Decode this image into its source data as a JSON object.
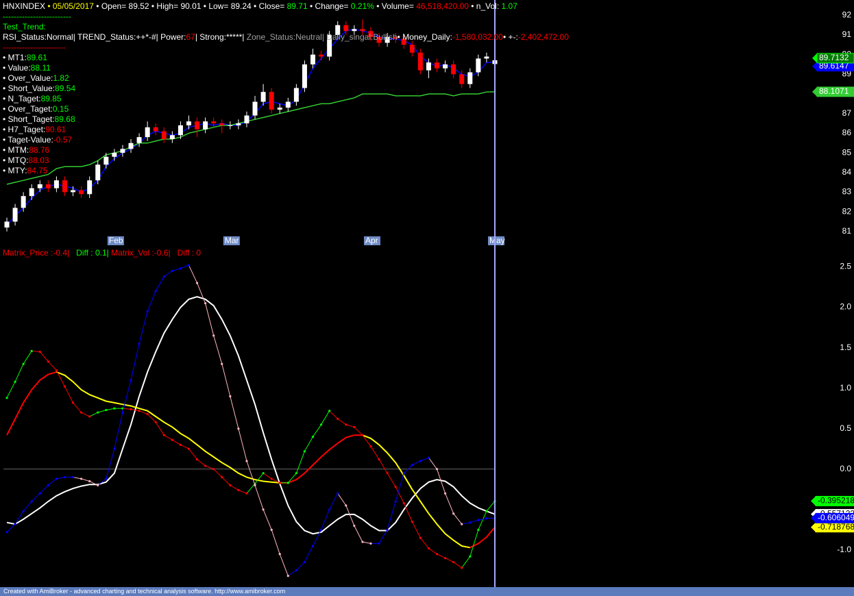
{
  "header": {
    "line1": [
      {
        "text": "HNXINDEX",
        "color": "#ffffff"
      },
      {
        "text": " • 05/05/2017",
        "color": "#ffff00"
      },
      {
        "text": " • Open= 89.52 • High= 90.01 • Low= 89.24 • Close= ",
        "color": "#ffffff"
      },
      {
        "text": "89.71",
        "color": "#00ff00"
      },
      {
        "text": " • Change= ",
        "color": "#ffffff"
      },
      {
        "text": "0.21%",
        "color": "#00ff00"
      },
      {
        "text": " • Volume= ",
        "color": "#ffffff"
      },
      {
        "text": "46,518,420.00",
        "color": "#ff0000"
      },
      {
        "text": " • n_Vol: ",
        "color": "#ffffff"
      },
      {
        "text": "1.07",
        "color": "#00ff00"
      }
    ],
    "separator_1": [
      {
        "text": "-------------------------",
        "color": "#00ff00"
      }
    ],
    "trend_title": [
      {
        "text": "Test_Trend:",
        "color": "#00ff00"
      }
    ],
    "line2": [
      {
        "text": "RSI_Status:Normal| TREND_Status:++*-#| Power:",
        "color": "#ffffff"
      },
      {
        "text": "67",
        "color": "#ff0000"
      },
      {
        "text": "| Strong:*****| ",
        "color": "#ffffff"
      },
      {
        "text": "Zone_Status:Neutral| Daily_singal:Bullish",
        "color": "#a0a0a0"
      },
      {
        "text": "• Money_Daily:",
        "color": "#ffffff"
      },
      {
        "text": "-1,580,032.00",
        "color": "#ff0000"
      },
      {
        "text": "• +-:",
        "color": "#ffffff"
      },
      {
        "text": "-2,402,472.00",
        "color": "#ff0000"
      }
    ],
    "separator_2": [
      {
        "text": "-----------------------",
        "color": "#ff0000"
      }
    ]
  },
  "indicators": [
    {
      "label": "• MT1:",
      "value": "89.61",
      "color": "#00ff00"
    },
    {
      "label": "• Value:",
      "value": "88.11",
      "color": "#00ff00"
    },
    {
      "label": "• Over_Value:",
      "value": "1.82",
      "color": "#00ff00"
    },
    {
      "label": "• Short_Value:",
      "value": "89.54",
      "color": "#00ff00"
    },
    {
      "label": "• N_Taget:",
      "value": "89.85",
      "color": "#00ff00"
    },
    {
      "label": "• Over_Taget:",
      "value": "0.15",
      "color": "#00ff00"
    },
    {
      "label": "• Short_Taget:",
      "value": "89.68",
      "color": "#00ff00"
    },
    {
      "label": "• H7_Taget:",
      "value": "90.61",
      "color": "#ff0000"
    },
    {
      "label": "• Taget-Value:",
      "value": "-0.57",
      "color": "#ff0000"
    },
    {
      "label": "• MTM:",
      "value": "88.76",
      "color": "#ff0000"
    },
    {
      "label": "• MTQ:",
      "value": "88.03",
      "color": "#ff0000"
    },
    {
      "label": "• MTY:",
      "value": "84.75",
      "color": "#ff0000"
    }
  ],
  "lower_header": [
    {
      "text": "Matrix_Price :-0.4|",
      "color": "#ff0000"
    },
    {
      "text": "   Diff : 0.1|",
      "color": "#00ff00"
    },
    {
      "text": " Matrix_Vol :-0.6|",
      "color": "#ff0000"
    },
    {
      "text": "   Diff : 0",
      "color": "#ff0000"
    }
  ],
  "footer": "Created with AmiBroker - advanced charting and technical analysis software. http://www.amibroker.com",
  "chart_data": [
    {
      "type": "candlestick",
      "categories": [
        null,
        null,
        null,
        null,
        null,
        null,
        null,
        null,
        null,
        null,
        null,
        null,
        null,
        "Feb",
        null,
        null,
        null,
        null,
        null,
        null,
        null,
        null,
        null,
        null,
        null,
        null,
        null,
        "Mar",
        null,
        null,
        null,
        null,
        null,
        null,
        null,
        null,
        null,
        null,
        null,
        null,
        null,
        null,
        null,
        null,
        "Apr",
        null,
        null,
        null,
        null,
        null,
        null,
        null,
        null,
        null,
        null,
        null,
        null,
        null,
        null,
        "May"
      ],
      "open": [
        81.2,
        81.5,
        82.2,
        82.8,
        83.2,
        83.4,
        83.2,
        83.6,
        83.0,
        83.1,
        82.9,
        83.6,
        84.4,
        84.8,
        85.0,
        85.2,
        85.5,
        85.8,
        86.3,
        86.1,
        85.7,
        85.9,
        86.4,
        86.6,
        86.2,
        86.6,
        86.5,
        86.4,
        86.4,
        86.5,
        86.9,
        87.6,
        88.1,
        87.2,
        87.3,
        87.6,
        88.3,
        89.5,
        90.0,
        89.9,
        91.0,
        91.5,
        91.2,
        91.3,
        91.2,
        90.9,
        90.6,
        90.9,
        90.8,
        90.5,
        90.1,
        89.2,
        89.6,
        89.3,
        89.5,
        89.0,
        88.5,
        89.1,
        89.8,
        89.52
      ],
      "high": [
        81.7,
        82.4,
        83.0,
        83.4,
        83.6,
        83.6,
        83.8,
        83.8,
        83.3,
        83.3,
        83.8,
        84.6,
        85.0,
        85.2,
        85.4,
        85.7,
        86.0,
        86.6,
        86.5,
        86.3,
        86.1,
        86.6,
        86.9,
        86.8,
        86.8,
        86.8,
        86.7,
        86.6,
        86.7,
        87.1,
        87.9,
        88.5,
        88.3,
        87.5,
        87.8,
        88.5,
        89.7,
        90.3,
        90.2,
        91.2,
        91.7,
        91.7,
        91.5,
        91.8,
        91.4,
        91.1,
        91.1,
        91.1,
        91.0,
        90.7,
        90.3,
        89.8,
        89.8,
        89.7,
        89.7,
        89.2,
        89.3,
        90.0,
        90.1,
        90.01
      ],
      "low": [
        81.0,
        81.3,
        82.0,
        82.6,
        83.0,
        83.0,
        83.0,
        82.8,
        82.8,
        82.7,
        82.7,
        83.4,
        84.2,
        84.6,
        84.8,
        85.0,
        85.3,
        85.6,
        85.9,
        85.5,
        85.5,
        85.7,
        86.2,
        85.8,
        86.0,
        86.3,
        86.0,
        86.2,
        86.2,
        86.3,
        86.7,
        87.4,
        87.0,
        87.0,
        87.1,
        87.4,
        88.1,
        89.3,
        89.7,
        89.7,
        90.8,
        91.0,
        91.0,
        91.0,
        90.7,
        90.4,
        90.4,
        90.6,
        90.3,
        89.9,
        89.0,
        88.8,
        89.1,
        89.1,
        88.8,
        88.3,
        88.3,
        88.9,
        89.6,
        89.24
      ],
      "close": [
        81.5,
        82.2,
        82.8,
        83.2,
        83.4,
        83.2,
        83.6,
        83.0,
        83.1,
        82.9,
        83.6,
        84.4,
        84.8,
        85.0,
        85.2,
        85.5,
        85.8,
        86.3,
        86.1,
        85.7,
        85.9,
        86.4,
        86.6,
        86.2,
        86.6,
        86.5,
        86.4,
        86.4,
        86.5,
        86.9,
        87.6,
        88.1,
        87.2,
        87.3,
        87.6,
        88.3,
        89.5,
        90.0,
        89.9,
        91.0,
        91.5,
        91.2,
        91.3,
        91.2,
        90.9,
        90.6,
        90.9,
        90.8,
        90.5,
        90.1,
        89.2,
        89.6,
        89.3,
        89.5,
        89.0,
        88.5,
        89.1,
        89.8,
        89.9,
        89.7132
      ],
      "up_color": "#ffffff",
      "down_color": "#ff0000",
      "close_tag_color": "#007a00",
      "series": [
        {
          "color": "#0000ff",
          "values": [
            81.3,
            81.8,
            82.2,
            82.7,
            83.1,
            83.3,
            83.4,
            83.3,
            83.2,
            83.0,
            83.2,
            83.6,
            84.3,
            84.7,
            85.0,
            85.2,
            85.5,
            85.9,
            86.1,
            86.0,
            85.9,
            86.0,
            86.3,
            86.4,
            86.5,
            86.4,
            86.5,
            86.4,
            86.4,
            86.6,
            87.0,
            87.5,
            87.6,
            87.5,
            87.4,
            87.7,
            88.5,
            89.3,
            89.8,
            90.3,
            90.8,
            91.2,
            91.3,
            91.2,
            91.1,
            90.9,
            90.8,
            90.8,
            90.7,
            90.5,
            89.9,
            89.6,
            89.4,
            89.5,
            89.3,
            89.0,
            88.9,
            89.1,
            89.6,
            89.6147
          ]
        },
        {
          "color": "#33cc33",
          "values": [
            83.4,
            83.5,
            83.6,
            83.7,
            83.8,
            83.9,
            84.2,
            84.3,
            84.3,
            84.3,
            84.4,
            84.6,
            84.9,
            85.0,
            85.1,
            85.3,
            85.5,
            85.5,
            85.6,
            85.7,
            85.7,
            85.8,
            86.0,
            86.1,
            86.2,
            86.3,
            86.4,
            86.4,
            86.5,
            86.6,
            86.7,
            86.8,
            86.9,
            87.0,
            87.1,
            87.2,
            87.3,
            87.4,
            87.5,
            87.5,
            87.6,
            87.7,
            87.8,
            88.0,
            88.0,
            88.0,
            88.0,
            87.9,
            87.9,
            87.9,
            87.9,
            88.0,
            88.0,
            88.0,
            87.9,
            88.0,
            88.0,
            88.0,
            88.1,
            88.1071
          ]
        }
      ],
      "ylim": [
        80.75,
        92.5
      ],
      "yticks": [
        81,
        82,
        83,
        84,
        85,
        86,
        87,
        88,
        89,
        90,
        91,
        92
      ]
    },
    {
      "type": "line",
      "zero_line": true,
      "series": [
        {
          "color": "#ffffff",
          "values": [
            -0.66,
            -0.68,
            -0.62,
            -0.55,
            -0.48,
            -0.4,
            -0.33,
            -0.28,
            -0.24,
            -0.21,
            -0.19,
            -0.19,
            -0.16,
            -0.05,
            0.25,
            0.55,
            0.9,
            1.2,
            1.45,
            1.68,
            1.85,
            2.0,
            2.1,
            2.13,
            2.1,
            2.02,
            1.85,
            1.65,
            1.4,
            1.1,
            0.8,
            0.45,
            0.12,
            -0.18,
            -0.45,
            -0.65,
            -0.76,
            -0.8,
            -0.78,
            -0.7,
            -0.62,
            -0.56,
            -0.56,
            -0.62,
            -0.7,
            -0.76,
            -0.76,
            -0.66,
            -0.5,
            -0.36,
            -0.24,
            -0.16,
            -0.13,
            -0.15,
            -0.22,
            -0.33,
            -0.42,
            -0.48,
            -0.52,
            -0.557122
          ]
        },
        {
          "color": "#ffff00",
          "up_color": "#ff0000",
          "down_color": "#ffff00",
          "values": [
            0.42,
            0.62,
            0.82,
            0.98,
            1.1,
            1.17,
            1.2,
            1.16,
            1.08,
            0.98,
            0.92,
            0.88,
            0.84,
            0.82,
            0.8,
            0.78,
            0.75,
            0.72,
            0.65,
            0.58,
            0.52,
            0.44,
            0.38,
            0.3,
            0.22,
            0.15,
            0.08,
            0.02,
            -0.05,
            -0.1,
            -0.13,
            -0.15,
            -0.16,
            -0.17,
            -0.17,
            -0.13,
            -0.05,
            0.05,
            0.15,
            0.24,
            0.32,
            0.39,
            0.42,
            0.42,
            0.38,
            0.3,
            0.2,
            0.08,
            -0.08,
            -0.25,
            -0.4,
            -0.55,
            -0.68,
            -0.8,
            -0.88,
            -0.95,
            -0.97,
            -0.92,
            -0.84,
            -0.718768
          ]
        },
        {
          "color": "#00ff00",
          "up_color": "#00ff00",
          "down_color": "#ff0000",
          "markers": true,
          "values": [
            0.88,
            1.08,
            1.3,
            1.46,
            1.45,
            1.33,
            1.22,
            1.02,
            0.82,
            0.7,
            0.65,
            0.7,
            0.73,
            0.75,
            0.75,
            0.74,
            0.72,
            0.68,
            0.58,
            0.42,
            0.36,
            0.3,
            0.25,
            0.12,
            0.04,
            0.0,
            -0.1,
            -0.2,
            -0.26,
            -0.3,
            -0.18,
            -0.05,
            -0.12,
            -0.17,
            -0.17,
            -0.05,
            0.22,
            0.4,
            0.55,
            0.72,
            0.62,
            0.55,
            0.52,
            0.42,
            0.28,
            0.12,
            -0.05,
            -0.22,
            -0.42,
            -0.65,
            -0.85,
            -0.98,
            -1.05,
            -1.1,
            -1.15,
            -1.22,
            -1.08,
            -0.75,
            -0.52,
            -0.395218
          ]
        },
        {
          "color": "#0000ff",
          "up_color": "#0000ff",
          "down_color": "#ffb6c1",
          "markers": true,
          "values": [
            -0.78,
            -0.68,
            -0.52,
            -0.4,
            -0.3,
            -0.2,
            -0.12,
            -0.1,
            -0.1,
            -0.12,
            -0.15,
            -0.2,
            -0.12,
            0.25,
            0.7,
            1.1,
            1.55,
            1.95,
            2.2,
            2.38,
            2.45,
            2.48,
            2.52,
            2.3,
            2.05,
            1.65,
            1.3,
            0.9,
            0.5,
            0.1,
            -0.2,
            -0.5,
            -0.75,
            -1.05,
            -1.32,
            -1.25,
            -1.15,
            -0.95,
            -0.75,
            -0.5,
            -0.3,
            -0.45,
            -0.7,
            -0.9,
            -0.92,
            -0.92,
            -0.75,
            -0.4,
            -0.05,
            0.05,
            0.1,
            0.14,
            0.0,
            -0.3,
            -0.55,
            -0.68,
            -0.66,
            -0.63,
            -0.61,
            -0.606049
          ]
        }
      ],
      "ylim": [
        -1.45,
        2.75
      ],
      "yticks": [
        {
          "value": -1,
          "label": "-1.0"
        },
        {
          "value": 0,
          "label": "0.0"
        },
        0.5,
        {
          "value": 1,
          "label": "1.0"
        },
        1.5,
        {
          "value": 2,
          "label": "2.0"
        },
        2.5
      ]
    }
  ]
}
